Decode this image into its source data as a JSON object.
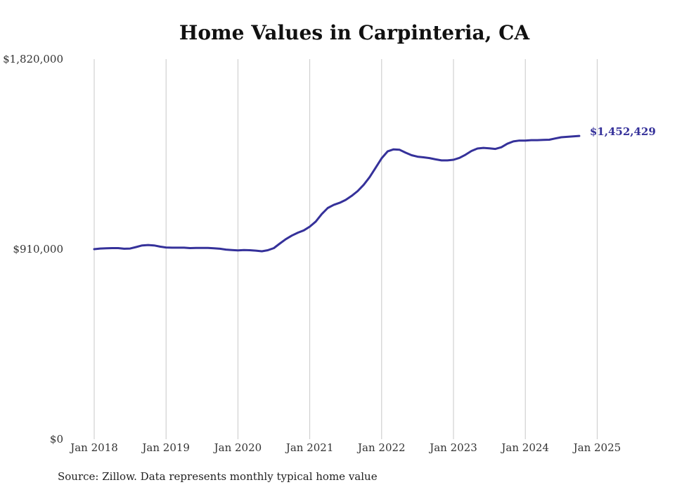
{
  "chart_data": {
    "type": "line",
    "title": "Home Values in Carpinteria, CA",
    "xlabel": "",
    "ylabel": "",
    "x_ticks": [
      "Jan 2018",
      "Jan 2019",
      "Jan 2020",
      "Jan 2021",
      "Jan 2022",
      "Jan 2023",
      "Jan 2024",
      "Jan 2025"
    ],
    "y_ticks": [
      "$0",
      "$910,000",
      "$1,820,000"
    ],
    "y_tick_values": [
      0,
      910000,
      1820000
    ],
    "ylim": [
      0,
      1820000
    ],
    "xlim": [
      "2018-01",
      "2025-04"
    ],
    "grid": "vertical",
    "line_color": "#35319a",
    "series": [
      {
        "name": "",
        "points": [
          [
            "2018-01",
            910000
          ],
          [
            "2018-02",
            913000
          ],
          [
            "2018-03",
            914000
          ],
          [
            "2018-04",
            915000
          ],
          [
            "2018-05",
            915000
          ],
          [
            "2018-06",
            912000
          ],
          [
            "2018-07",
            913000
          ],
          [
            "2018-08",
            920000
          ],
          [
            "2018-09",
            928000
          ],
          [
            "2018-10",
            930000
          ],
          [
            "2018-11",
            928000
          ],
          [
            "2018-12",
            922000
          ],
          [
            "2019-01",
            918000
          ],
          [
            "2019-02",
            917000
          ],
          [
            "2019-03",
            917000
          ],
          [
            "2019-04",
            917000
          ],
          [
            "2019-05",
            915000
          ],
          [
            "2019-06",
            916000
          ],
          [
            "2019-07",
            916000
          ],
          [
            "2019-08",
            916000
          ],
          [
            "2019-09",
            914000
          ],
          [
            "2019-10",
            912000
          ],
          [
            "2019-11",
            908000
          ],
          [
            "2019-12",
            906000
          ],
          [
            "2020-01",
            904000
          ],
          [
            "2020-02",
            906000
          ],
          [
            "2020-03",
            905000
          ],
          [
            "2020-04",
            903000
          ],
          [
            "2020-05",
            900000
          ],
          [
            "2020-06",
            905000
          ],
          [
            "2020-07",
            915000
          ],
          [
            "2020-08",
            937000
          ],
          [
            "2020-09",
            958000
          ],
          [
            "2020-10",
            975000
          ],
          [
            "2020-11",
            989000
          ],
          [
            "2020-12",
            1000000
          ],
          [
            "2021-01",
            1018000
          ],
          [
            "2021-02",
            1042000
          ],
          [
            "2021-03",
            1078000
          ],
          [
            "2021-04",
            1107000
          ],
          [
            "2021-05",
            1122000
          ],
          [
            "2021-06",
            1132000
          ],
          [
            "2021-07",
            1146000
          ],
          [
            "2021-08",
            1165000
          ],
          [
            "2021-09",
            1188000
          ],
          [
            "2021-10",
            1218000
          ],
          [
            "2021-11",
            1255000
          ],
          [
            "2021-12",
            1300000
          ],
          [
            "2022-01",
            1345000
          ],
          [
            "2022-02",
            1378000
          ],
          [
            "2022-03",
            1388000
          ],
          [
            "2022-04",
            1386000
          ],
          [
            "2022-05",
            1372000
          ],
          [
            "2022-06",
            1360000
          ],
          [
            "2022-07",
            1353000
          ],
          [
            "2022-08",
            1350000
          ],
          [
            "2022-09",
            1346000
          ],
          [
            "2022-10",
            1340000
          ],
          [
            "2022-11",
            1335000
          ],
          [
            "2022-12",
            1335000
          ],
          [
            "2023-01",
            1338000
          ],
          [
            "2023-02",
            1347000
          ],
          [
            "2023-03",
            1362000
          ],
          [
            "2023-04",
            1380000
          ],
          [
            "2023-05",
            1392000
          ],
          [
            "2023-06",
            1395000
          ],
          [
            "2023-07",
            1393000
          ],
          [
            "2023-08",
            1390000
          ],
          [
            "2023-09",
            1398000
          ],
          [
            "2023-10",
            1415000
          ],
          [
            "2023-11",
            1426000
          ],
          [
            "2023-12",
            1430000
          ],
          [
            "2024-01",
            1430000
          ],
          [
            "2024-02",
            1432000
          ],
          [
            "2024-03",
            1432000
          ],
          [
            "2024-04",
            1433000
          ],
          [
            "2024-05",
            1434000
          ],
          [
            "2024-06",
            1440000
          ],
          [
            "2024-07",
            1446000
          ],
          [
            "2024-08",
            1448000
          ],
          [
            "2024-09",
            1450000
          ],
          [
            "2024-10",
            1452429
          ]
        ]
      }
    ],
    "end_label": "$1,452,429"
  },
  "footer": {
    "source": "Source: Zillow. Data represents monthly typical home value"
  }
}
